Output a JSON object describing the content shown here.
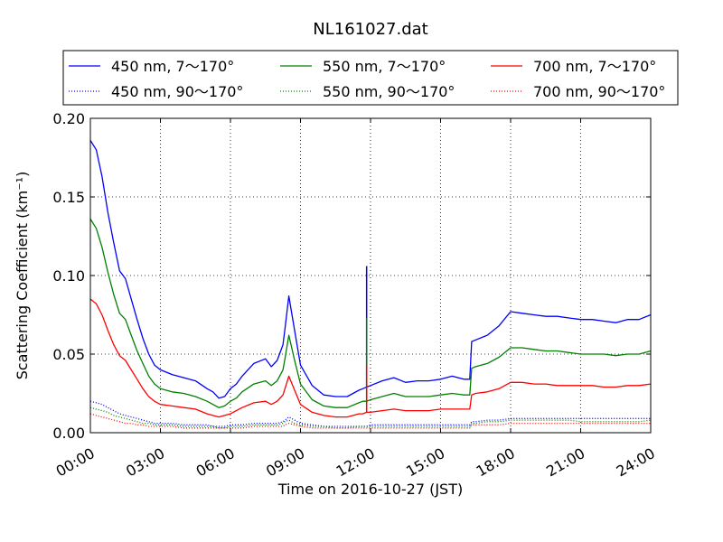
{
  "chart_data": {
    "type": "line",
    "title": "NL161027.dat",
    "xlabel": "Time on 2016-10-27 (JST)",
    "ylabel": "Scattering Coefficient (km⁻¹)",
    "xlim": [
      "00:00",
      "24:00"
    ],
    "ylim": [
      0,
      0.2
    ],
    "x_ticks": [
      "00:00",
      "03:00",
      "06:00",
      "09:00",
      "12:00",
      "15:00",
      "18:00",
      "21:00",
      "24:00"
    ],
    "y_ticks": [
      "0.00",
      "0.05",
      "0.10",
      "0.15",
      "0.20"
    ],
    "grid": true,
    "legend_position": "top",
    "x": [
      "00:00",
      "00:15",
      "00:30",
      "00:45",
      "01:00",
      "01:15",
      "01:30",
      "01:45",
      "02:00",
      "02:15",
      "02:30",
      "02:45",
      "03:00",
      "03:30",
      "04:00",
      "04:30",
      "05:00",
      "05:15",
      "05:30",
      "05:45",
      "06:00",
      "06:15",
      "06:30",
      "07:00",
      "07:30",
      "07:45",
      "08:00",
      "08:15",
      "08:20",
      "08:30",
      "08:45",
      "09:00",
      "09:30",
      "10:00",
      "10:30",
      "11:00",
      "11:30",
      "11:40",
      "11:50",
      "12:00",
      "12:30",
      "13:00",
      "13:30",
      "14:00",
      "14:30",
      "15:00",
      "15:30",
      "16:00",
      "16:15",
      "16:20",
      "16:30",
      "17:00",
      "17:30",
      "18:00",
      "18:30",
      "19:00",
      "19:30",
      "20:00",
      "20:30",
      "21:00",
      "21:30",
      "22:00",
      "22:30",
      "23:00",
      "23:30",
      "24:00"
    ],
    "series": [
      {
        "name": "450 nm, 7～170°",
        "color": "#0000ff",
        "style": "solid",
        "values": [
          0.186,
          0.18,
          0.163,
          0.14,
          0.121,
          0.103,
          0.098,
          0.085,
          0.072,
          0.06,
          0.05,
          0.043,
          0.04,
          0.037,
          0.035,
          0.033,
          0.028,
          0.026,
          0.022,
          0.023,
          0.028,
          0.031,
          0.036,
          0.044,
          0.047,
          0.042,
          0.046,
          0.056,
          0.066,
          0.087,
          0.065,
          0.043,
          0.03,
          0.024,
          0.023,
          0.023,
          0.027,
          0.028,
          0.029,
          0.03,
          0.033,
          0.035,
          0.032,
          0.033,
          0.033,
          0.034,
          0.036,
          0.034,
          0.034,
          0.058,
          0.059,
          0.062,
          0.068,
          0.077,
          0.076,
          0.075,
          0.074,
          0.074,
          0.073,
          0.072,
          0.072,
          0.071,
          0.07,
          0.072,
          0.072,
          0.075
        ]
      },
      {
        "name": "550 nm, 7～170°",
        "color": "#008000",
        "style": "solid",
        "values": [
          0.136,
          0.13,
          0.118,
          0.102,
          0.088,
          0.076,
          0.072,
          0.062,
          0.052,
          0.044,
          0.036,
          0.031,
          0.028,
          0.026,
          0.025,
          0.023,
          0.02,
          0.018,
          0.016,
          0.017,
          0.02,
          0.022,
          0.026,
          0.031,
          0.033,
          0.03,
          0.033,
          0.04,
          0.047,
          0.062,
          0.046,
          0.031,
          0.021,
          0.017,
          0.016,
          0.016,
          0.019,
          0.02,
          0.02,
          0.021,
          0.023,
          0.025,
          0.023,
          0.023,
          0.023,
          0.024,
          0.025,
          0.024,
          0.024,
          0.041,
          0.042,
          0.044,
          0.048,
          0.054,
          0.054,
          0.053,
          0.052,
          0.052,
          0.051,
          0.05,
          0.05,
          0.05,
          0.049,
          0.05,
          0.05,
          0.052
        ]
      },
      {
        "name": "700 nm, 7～170°",
        "color": "#ff0000",
        "style": "solid",
        "values": [
          0.085,
          0.082,
          0.075,
          0.065,
          0.056,
          0.049,
          0.046,
          0.04,
          0.034,
          0.028,
          0.023,
          0.02,
          0.018,
          0.017,
          0.016,
          0.015,
          0.012,
          0.011,
          0.01,
          0.011,
          0.012,
          0.014,
          0.016,
          0.019,
          0.02,
          0.018,
          0.02,
          0.024,
          0.028,
          0.036,
          0.027,
          0.018,
          0.013,
          0.011,
          0.01,
          0.01,
          0.012,
          0.012,
          0.013,
          0.013,
          0.014,
          0.015,
          0.014,
          0.014,
          0.014,
          0.015,
          0.015,
          0.015,
          0.015,
          0.024,
          0.025,
          0.026,
          0.028,
          0.032,
          0.032,
          0.031,
          0.031,
          0.03,
          0.03,
          0.03,
          0.03,
          0.029,
          0.029,
          0.03,
          0.03,
          0.031
        ]
      },
      {
        "name": "450 nm, 90～170°",
        "color": "#0000ff",
        "style": "dotted",
        "values": [
          0.02,
          0.019,
          0.018,
          0.016,
          0.014,
          0.012,
          0.011,
          0.01,
          0.009,
          0.008,
          0.007,
          0.006,
          0.006,
          0.006,
          0.005,
          0.005,
          0.005,
          0.004,
          0.004,
          0.004,
          0.005,
          0.005,
          0.005,
          0.006,
          0.006,
          0.006,
          0.006,
          0.007,
          0.008,
          0.01,
          0.008,
          0.006,
          0.005,
          0.004,
          0.004,
          0.004,
          0.004,
          0.004,
          0.004,
          0.005,
          0.005,
          0.005,
          0.005,
          0.005,
          0.005,
          0.005,
          0.005,
          0.005,
          0.005,
          0.007,
          0.007,
          0.008,
          0.008,
          0.009,
          0.009,
          0.009,
          0.009,
          0.009,
          0.009,
          0.009,
          0.009,
          0.009,
          0.009,
          0.009,
          0.009,
          0.009
        ]
      },
      {
        "name": "550 nm, 90～170°",
        "color": "#008000",
        "style": "dotted",
        "values": [
          0.016,
          0.015,
          0.014,
          0.013,
          0.011,
          0.01,
          0.009,
          0.008,
          0.007,
          0.006,
          0.006,
          0.005,
          0.005,
          0.005,
          0.004,
          0.004,
          0.004,
          0.004,
          0.003,
          0.003,
          0.004,
          0.004,
          0.004,
          0.005,
          0.005,
          0.005,
          0.005,
          0.006,
          0.007,
          0.008,
          0.006,
          0.005,
          0.004,
          0.004,
          0.003,
          0.003,
          0.004,
          0.004,
          0.004,
          0.004,
          0.004,
          0.004,
          0.004,
          0.004,
          0.004,
          0.004,
          0.004,
          0.004,
          0.004,
          0.006,
          0.006,
          0.007,
          0.007,
          0.008,
          0.008,
          0.008,
          0.008,
          0.008,
          0.008,
          0.007,
          0.007,
          0.007,
          0.007,
          0.007,
          0.007,
          0.008
        ]
      },
      {
        "name": "700 nm, 90～170°",
        "color": "#ff0000",
        "style": "dotted",
        "values": [
          0.012,
          0.011,
          0.01,
          0.009,
          0.008,
          0.007,
          0.006,
          0.006,
          0.005,
          0.005,
          0.004,
          0.004,
          0.004,
          0.004,
          0.003,
          0.003,
          0.003,
          0.003,
          0.003,
          0.003,
          0.003,
          0.003,
          0.003,
          0.004,
          0.004,
          0.004,
          0.004,
          0.004,
          0.005,
          0.006,
          0.005,
          0.004,
          0.003,
          0.003,
          0.003,
          0.003,
          0.003,
          0.003,
          0.003,
          0.003,
          0.003,
          0.003,
          0.003,
          0.003,
          0.003,
          0.003,
          0.003,
          0.003,
          0.003,
          0.005,
          0.005,
          0.005,
          0.005,
          0.006,
          0.006,
          0.006,
          0.006,
          0.006,
          0.006,
          0.006,
          0.006,
          0.006,
          0.006,
          0.006,
          0.006,
          0.006
        ]
      }
    ],
    "spikes": [
      {
        "x": "11:50",
        "series_values": [
          0.106,
          0.073,
          0.043
        ]
      }
    ]
  }
}
